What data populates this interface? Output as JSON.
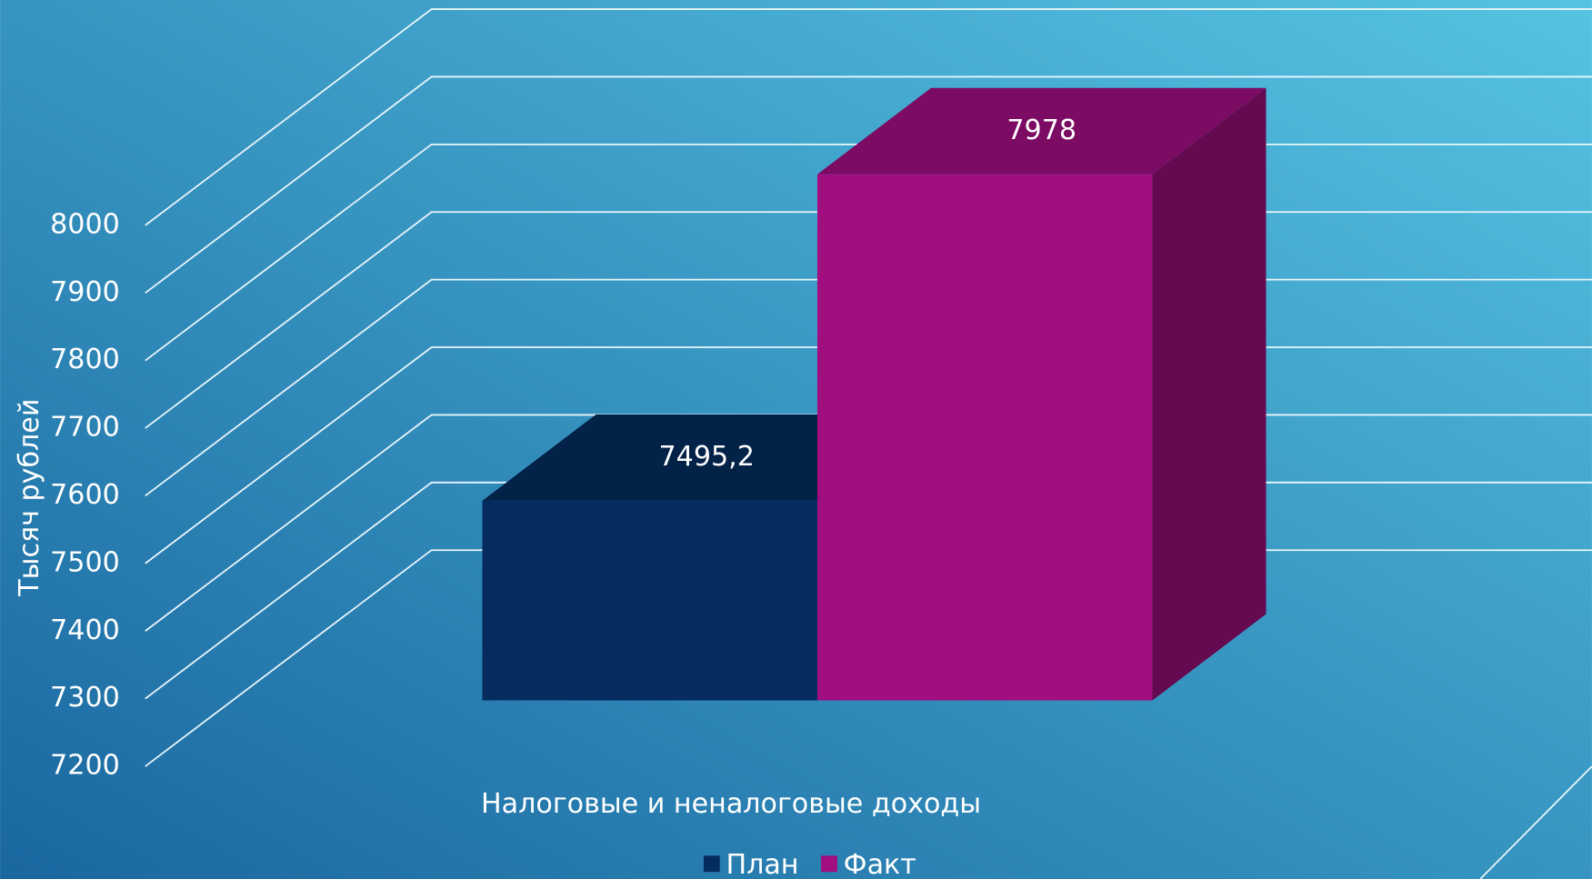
{
  "chart_data": {
    "type": "bar3d",
    "categories": [
      "Налоговые и неналоговые доходы"
    ],
    "series": [
      {
        "name": "План",
        "color": "#042c5e",
        "values": [
          7495.2
        ],
        "value_labels": [
          "7495,2"
        ]
      },
      {
        "name": "Факт",
        "color": "#a10e80",
        "values": [
          7978
        ]
      }
    ],
    "y_label": "Тысяч рублей",
    "ylim": [
      7200,
      8000
    ],
    "yticks": [
      7200,
      7300,
      7400,
      7500,
      7600,
      7700,
      7800,
      7900,
      8000
    ],
    "grid": true,
    "legend": "bottom"
  }
}
